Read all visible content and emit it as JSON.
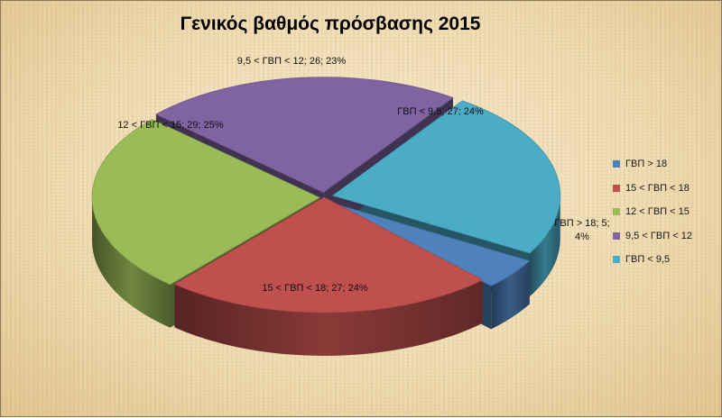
{
  "chart_data": {
    "type": "pie",
    "title": "Γενικός βαθμός πρόσβασης 2015",
    "slices": [
      {
        "name": "ΓΒΠ > 18",
        "value": 5,
        "percent": "4%",
        "color": "#4f81bd",
        "label_lines": [
          "ΓΒΠ > 18; 5;",
          "4%"
        ]
      },
      {
        "name": "15 < ΓΒΠ < 18",
        "value": 27,
        "percent": "24%",
        "color": "#c0504d",
        "label_lines": [
          "15 < ΓΒΠ < 18; 27; 24%"
        ]
      },
      {
        "name": "12 < ΓΒΠ < 15",
        "value": 29,
        "percent": "25%",
        "color": "#9bbb59",
        "label_lines": [
          "12 < ΓΒΠ < 15; 29; 25%"
        ]
      },
      {
        "name": "9,5 < ΓΒΠ < 12",
        "value": 26,
        "percent": "23%",
        "color": "#8064a2",
        "label_lines": [
          "9,5 < ΓΒΠ < 12; 26; 23%"
        ]
      },
      {
        "name": "ΓΒΠ < 9,5",
        "value": 27,
        "percent": "24%",
        "color": "#4bacc6",
        "label_lines": [
          "ΓΒΠ < 9,5; 27; 24%"
        ]
      }
    ],
    "legend_position": "right",
    "style": "3d-exploded-pie"
  }
}
